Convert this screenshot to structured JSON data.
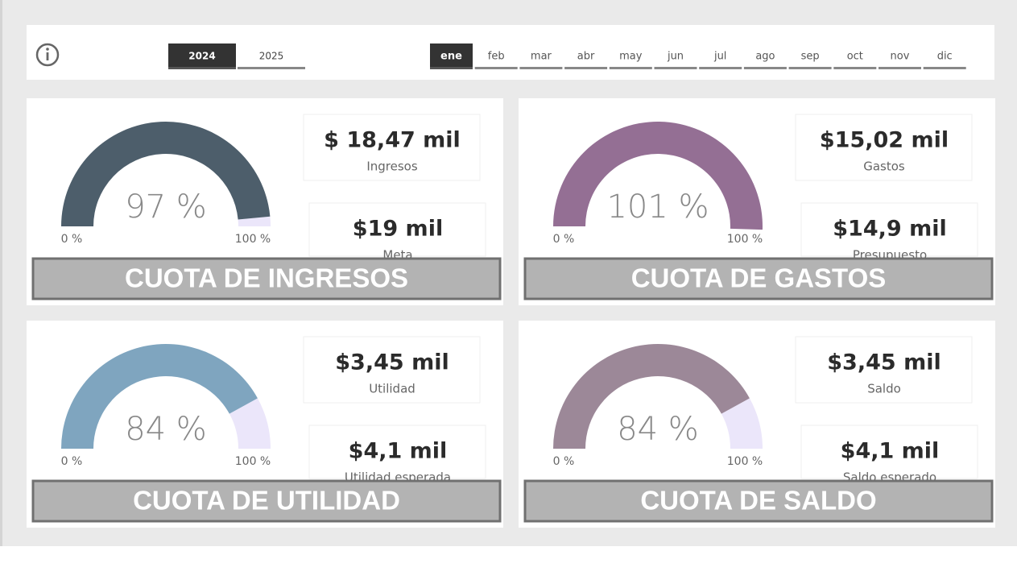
{
  "filters": {
    "years": [
      {
        "label": "2024",
        "selected": true
      },
      {
        "label": "2025",
        "selected": false
      }
    ],
    "months": [
      {
        "label": "ene",
        "selected": true
      },
      {
        "label": "feb",
        "selected": false
      },
      {
        "label": "mar",
        "selected": false
      },
      {
        "label": "abr",
        "selected": false
      },
      {
        "label": "may",
        "selected": false
      },
      {
        "label": "jun",
        "selected": false
      },
      {
        "label": "jul",
        "selected": false
      },
      {
        "label": "ago",
        "selected": false
      },
      {
        "label": "sep",
        "selected": false
      },
      {
        "label": "oct",
        "selected": false
      },
      {
        "label": "nov",
        "selected": false
      },
      {
        "label": "dic",
        "selected": false
      }
    ]
  },
  "cards": [
    {
      "title": "CUOTA DE INGRESOS",
      "gauge": {
        "value": 97,
        "label": "97 %",
        "min": {
          "value": 0,
          "label": "0 %"
        },
        "max": {
          "value": 100,
          "label": "100 %"
        },
        "color": "#4d5e6b",
        "track_color": "#ebe6fa"
      },
      "kpis": [
        {
          "value": "$ 18,47 mil",
          "label": "Ingresos"
        },
        {
          "value": "$19 mil",
          "label": "Meta"
        }
      ]
    },
    {
      "title": "CUOTA DE GASTOS",
      "gauge": {
        "value": 101,
        "label": "101 %",
        "min": {
          "value": 0,
          "label": "0 %"
        },
        "max": {
          "value": 100,
          "label": "100 %"
        },
        "color": "#946f94",
        "track_color": "#ebe6fa"
      },
      "kpis": [
        {
          "value": "$15,02 mil",
          "label": "Gastos"
        },
        {
          "value": "$14,9 mil",
          "label": "Presupuesto"
        }
      ]
    },
    {
      "title": "CUOTA DE UTILIDAD",
      "gauge": {
        "value": 84,
        "label": "84 %",
        "min": {
          "value": 0,
          "label": "0 %"
        },
        "max": {
          "value": 100,
          "label": "100 %"
        },
        "color": "#7fa5bf",
        "track_color": "#ebe6fa"
      },
      "kpis": [
        {
          "value": "$3,45 mil",
          "label": "Utilidad"
        },
        {
          "value": "$4,1 mil",
          "label": "Utilidad esperada"
        }
      ]
    },
    {
      "title": "CUOTA DE SALDO",
      "gauge": {
        "value": 84,
        "label": "84 %",
        "min": {
          "value": 0,
          "label": "0 %"
        },
        "max": {
          "value": 100,
          "label": "100 %"
        },
        "color": "#9c8898",
        "track_color": "#ebe6fa"
      },
      "kpis": [
        {
          "value": "$3,45 mil",
          "label": "Saldo"
        },
        {
          "value": "$4,1 mil",
          "label": "Saldo esperado"
        }
      ]
    }
  ]
}
